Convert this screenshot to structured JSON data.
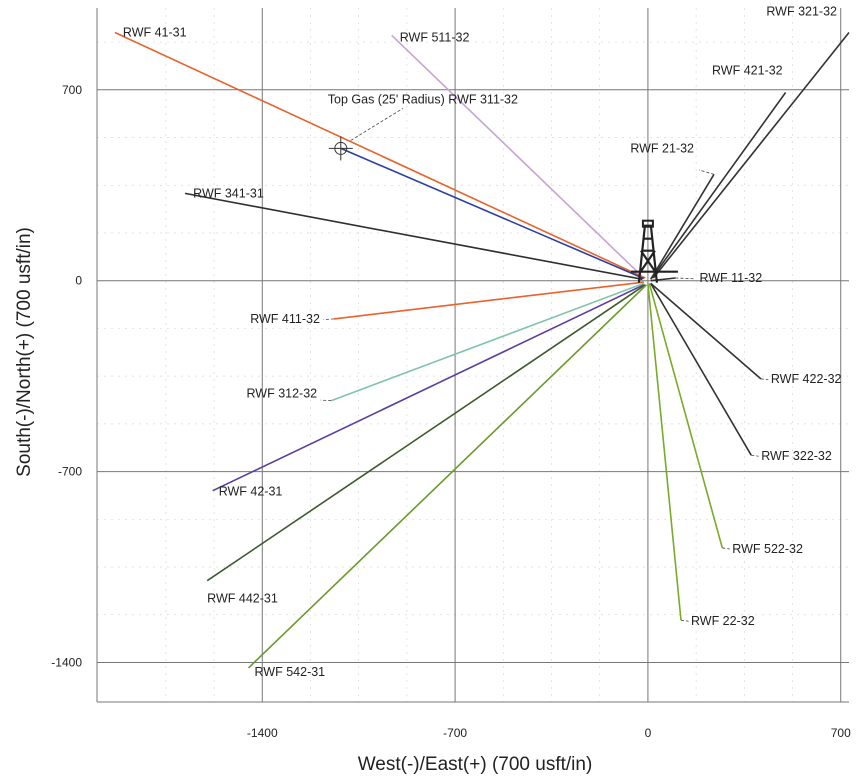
{
  "chart_data": {
    "type": "line",
    "xlabel": "West(-)/East(+) (700 usft/in)",
    "ylabel": "South(-)/North(+) (700 usft/in)",
    "xlim": [
      -2000,
      730
    ],
    "ylim": [
      -1545,
      1000
    ],
    "x_ticks": [
      {
        "value": -1400,
        "label": "-1400"
      },
      {
        "value": -700,
        "label": "-700"
      },
      {
        "value": 0,
        "label": "0"
      },
      {
        "value": 700,
        "label": "700"
      }
    ],
    "y_ticks": [
      {
        "value": 700,
        "label": "700"
      },
      {
        "value": 0,
        "label": "0"
      },
      {
        "value": -700,
        "label": "-700"
      },
      {
        "value": -1400,
        "label": "-1400"
      }
    ],
    "grid": true,
    "annotation": {
      "text": "Top Gas (25' Radius) RWF 311-32",
      "target": {
        "x": -1115,
        "y": 485
      }
    },
    "origin": {
      "x": 0,
      "y": 0
    },
    "series": [
      {
        "name": "RWF 41-31",
        "color": "#e8622a",
        "x": [
          -10,
          -1935
        ],
        "y": [
          10,
          910
        ]
      },
      {
        "name": "RWF 511-32",
        "color": "#c7a2d8",
        "x": [
          -20,
          -930
        ],
        "y": [
          15,
          900
        ]
      },
      {
        "name": "RWF 311-32",
        "color": "#2c3ea8",
        "x": [
          -15,
          -1115
        ],
        "y": [
          8,
          485
        ]
      },
      {
        "name": "RWF 341-31",
        "color": "#2e2e2e",
        "x": [
          -20,
          -1680
        ],
        "y": [
          5,
          320
        ]
      },
      {
        "name": "RWF 411-32",
        "color": "#e8622a",
        "x": [
          -15,
          -1140
        ],
        "y": [
          -5,
          -140
        ]
      },
      {
        "name": "RWF 312-32",
        "color": "#7fc4a8",
        "x": [
          -15,
          -1150
        ],
        "y": [
          -10,
          -440
        ]
      },
      {
        "name": "RWF 42-31",
        "color": "#5a3ea0",
        "x": [
          -15,
          -1580
        ],
        "y": [
          -15,
          -770
        ]
      },
      {
        "name": "RWF 442-31",
        "color": "#3e5a2e",
        "x": [
          -10,
          -1600
        ],
        "y": [
          -15,
          -1100
        ]
      },
      {
        "name": "RWF 542-31",
        "color": "#6a9a2a",
        "x": [
          -5,
          -1450
        ],
        "y": [
          -15,
          -1420
        ]
      },
      {
        "name": "RWF 21-32",
        "color": "#333333",
        "x": [
          10,
          240
        ],
        "y": [
          5,
          390
        ]
      },
      {
        "name": "RWF 421-32",
        "color": "#333333",
        "x": [
          15,
          500
        ],
        "y": [
          10,
          690
        ]
      },
      {
        "name": "RWF 321-32",
        "color": "#333333",
        "x": [
          20,
          730
        ],
        "y": [
          10,
          910
        ]
      },
      {
        "name": "RWF 11-32",
        "color": "#333333",
        "x": [
          10,
          100
        ],
        "y": [
          0,
          10
        ]
      },
      {
        "name": "RWF 422-32",
        "color": "#333333",
        "x": [
          10,
          410
        ],
        "y": [
          -10,
          -360
        ]
      },
      {
        "name": "RWF 322-32",
        "color": "#333333",
        "x": [
          10,
          375
        ],
        "y": [
          -10,
          -640
        ]
      },
      {
        "name": "RWF 522-32",
        "color": "#7aaa2a",
        "x": [
          5,
          270
        ],
        "y": [
          -10,
          -980
        ]
      },
      {
        "name": "RWF 22-32",
        "color": "#7aaa2a",
        "x": [
          0,
          120
        ],
        "y": [
          -10,
          -1245
        ]
      }
    ]
  }
}
